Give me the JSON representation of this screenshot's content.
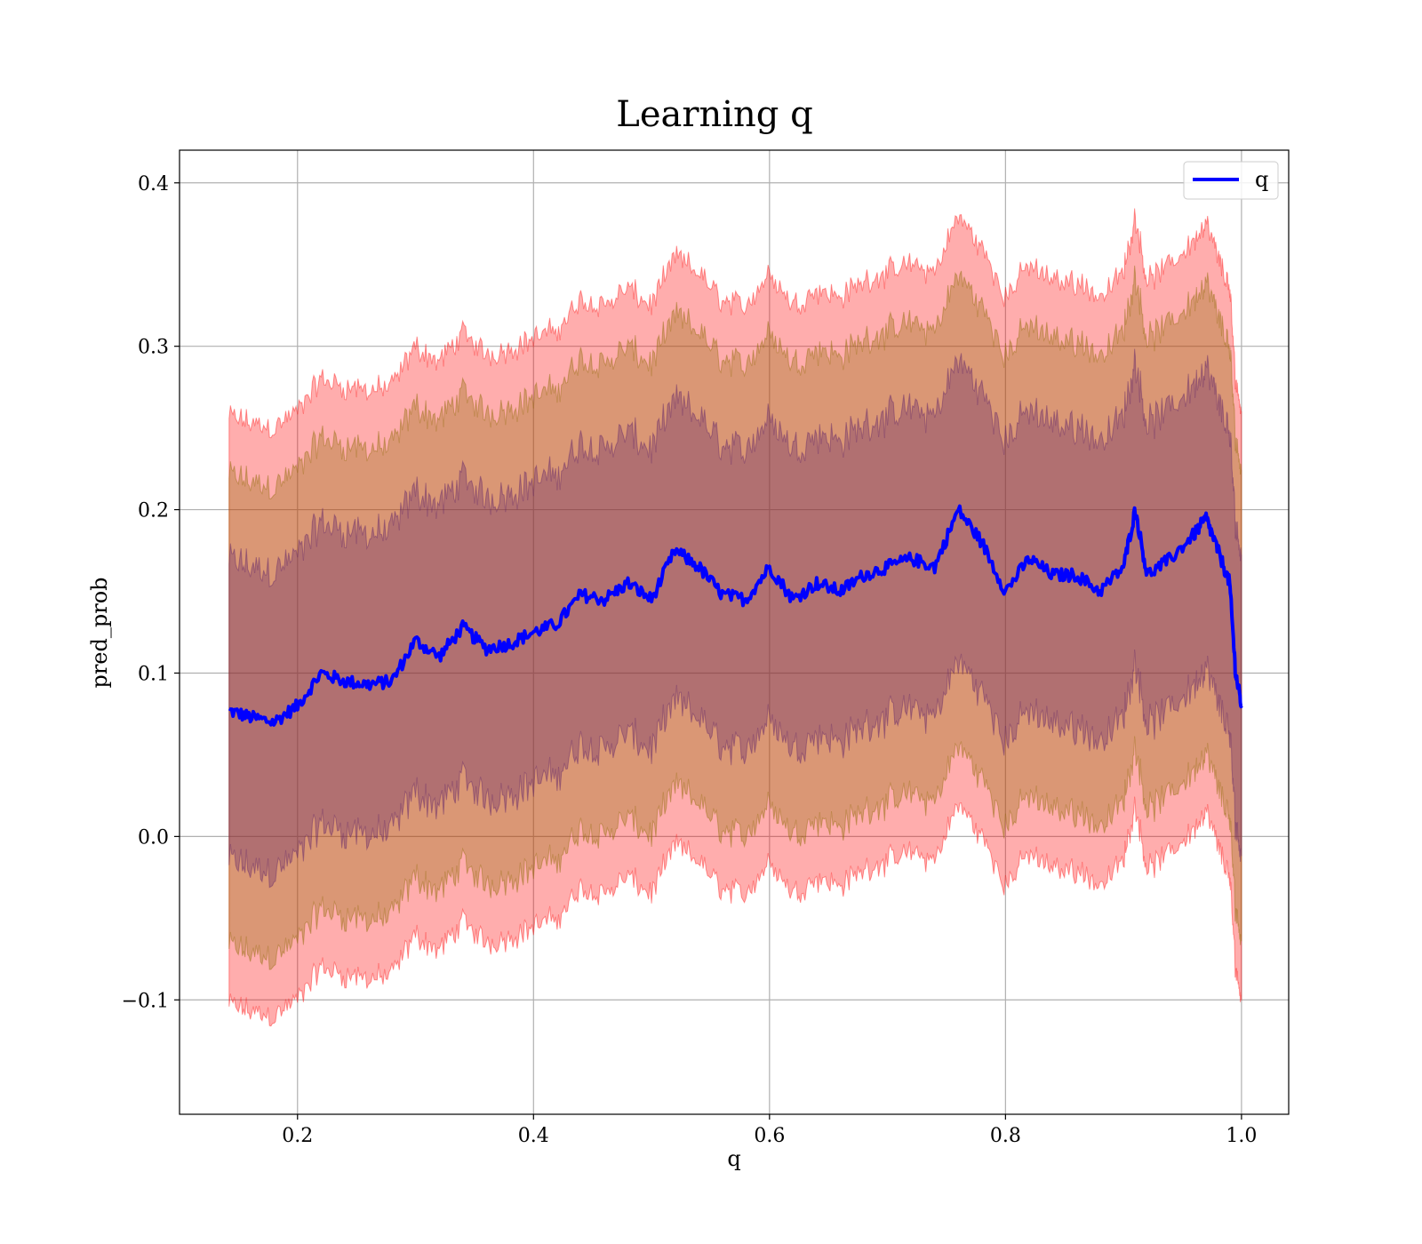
{
  "chart_data": {
    "type": "line",
    "title": "Learning q",
    "xlabel": "q",
    "ylabel": "pred_prob",
    "xlim": [
      0.1,
      1.04
    ],
    "ylim": [
      -0.17,
      0.42
    ],
    "x_ticks": [
      {
        "value": 0.2,
        "label": "0.2"
      },
      {
        "value": 0.4,
        "label": "0.4"
      },
      {
        "value": 0.6,
        "label": "0.6"
      },
      {
        "value": 0.8,
        "label": "0.8"
      },
      {
        "value": 1.0,
        "label": "1.0"
      }
    ],
    "y_ticks": [
      {
        "value": -0.1,
        "label": "−0.1"
      },
      {
        "value": 0.0,
        "label": "0.0"
      },
      {
        "value": 0.1,
        "label": "0.1"
      },
      {
        "value": 0.2,
        "label": "0.2"
      },
      {
        "value": 0.3,
        "label": "0.3"
      },
      {
        "value": 0.4,
        "label": "0.4"
      }
    ],
    "grid": true,
    "legend": {
      "placement": "top-right",
      "entries": [
        "q"
      ]
    },
    "colors": {
      "line": "#0000ff",
      "band_outer": "#ff0000",
      "band_middle": "#8b6a00",
      "band_inner": "#5a1f6a"
    },
    "series": [
      {
        "name": "q",
        "x": [
          0.142,
          0.16,
          0.18,
          0.2,
          0.22,
          0.24,
          0.26,
          0.28,
          0.3,
          0.32,
          0.34,
          0.36,
          0.38,
          0.4,
          0.42,
          0.44,
          0.46,
          0.48,
          0.5,
          0.52,
          0.54,
          0.56,
          0.58,
          0.6,
          0.62,
          0.64,
          0.66,
          0.68,
          0.7,
          0.72,
          0.74,
          0.76,
          0.78,
          0.8,
          0.82,
          0.84,
          0.86,
          0.88,
          0.9,
          0.91,
          0.92,
          0.94,
          0.96,
          0.97,
          0.98,
          0.99,
          0.995,
          1.0
        ],
        "mean": [
          0.077,
          0.073,
          0.07,
          0.08,
          0.1,
          0.095,
          0.093,
          0.095,
          0.12,
          0.11,
          0.128,
          0.115,
          0.118,
          0.125,
          0.13,
          0.148,
          0.145,
          0.155,
          0.145,
          0.175,
          0.165,
          0.148,
          0.145,
          0.165,
          0.145,
          0.155,
          0.15,
          0.16,
          0.165,
          0.17,
          0.165,
          0.2,
          0.18,
          0.15,
          0.17,
          0.16,
          0.16,
          0.15,
          0.165,
          0.2,
          0.16,
          0.17,
          0.185,
          0.195,
          0.175,
          0.155,
          0.1,
          0.08
        ],
        "band_halfwidths": [
          0.092,
          0.144,
          0.18
        ]
      }
    ]
  }
}
